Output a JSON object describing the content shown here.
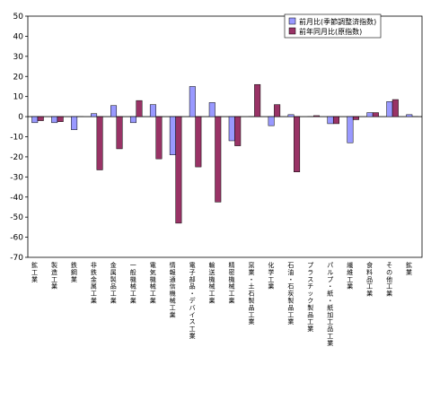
{
  "chart_data": {
    "type": "bar",
    "ylim": [
      -70,
      50
    ],
    "yticks": [
      50,
      40,
      30,
      20,
      10,
      0,
      -10,
      -20,
      -30,
      -40,
      -50,
      -60,
      -70
    ],
    "grid": false,
    "legend_position": "top-right",
    "categories": [
      "鉱工業",
      "製造工業",
      "鉄鋼業",
      "非鉄金属工業",
      "金属製品工業",
      "一般機械工業",
      "電気機械工業",
      "情報通信機械工業",
      "電子部品・デバイス工業",
      "輸送機械工業",
      "精密機械工業",
      "窯業・土石製品工業",
      "化学工業",
      "石油・石炭製品工業",
      "プラスチック製品工業",
      "パルプ・紙・紙加工品工業",
      "繊維工業",
      "食料品工業",
      "その他工業",
      "鉱業"
    ],
    "series": [
      {
        "name": "前月比(季節調整済指数)",
        "color": "#9999ff",
        "values": [
          -3,
          -3,
          -6.5,
          1.5,
          5.5,
          -3,
          6,
          -19,
          15,
          7,
          -12,
          0,
          -4.5,
          1,
          0,
          -3.5,
          -13,
          2,
          7.5,
          1
        ]
      },
      {
        "name": "前年同月比(原指数)",
        "color": "#993366",
        "values": [
          -2,
          -2.5,
          0,
          -26.5,
          -16,
          8,
          -21,
          -53,
          -25,
          -42.5,
          -14.5,
          16,
          6,
          -27.5,
          0.5,
          -3.5,
          -1.5,
          2,
          8.5,
          0
        ]
      }
    ]
  }
}
